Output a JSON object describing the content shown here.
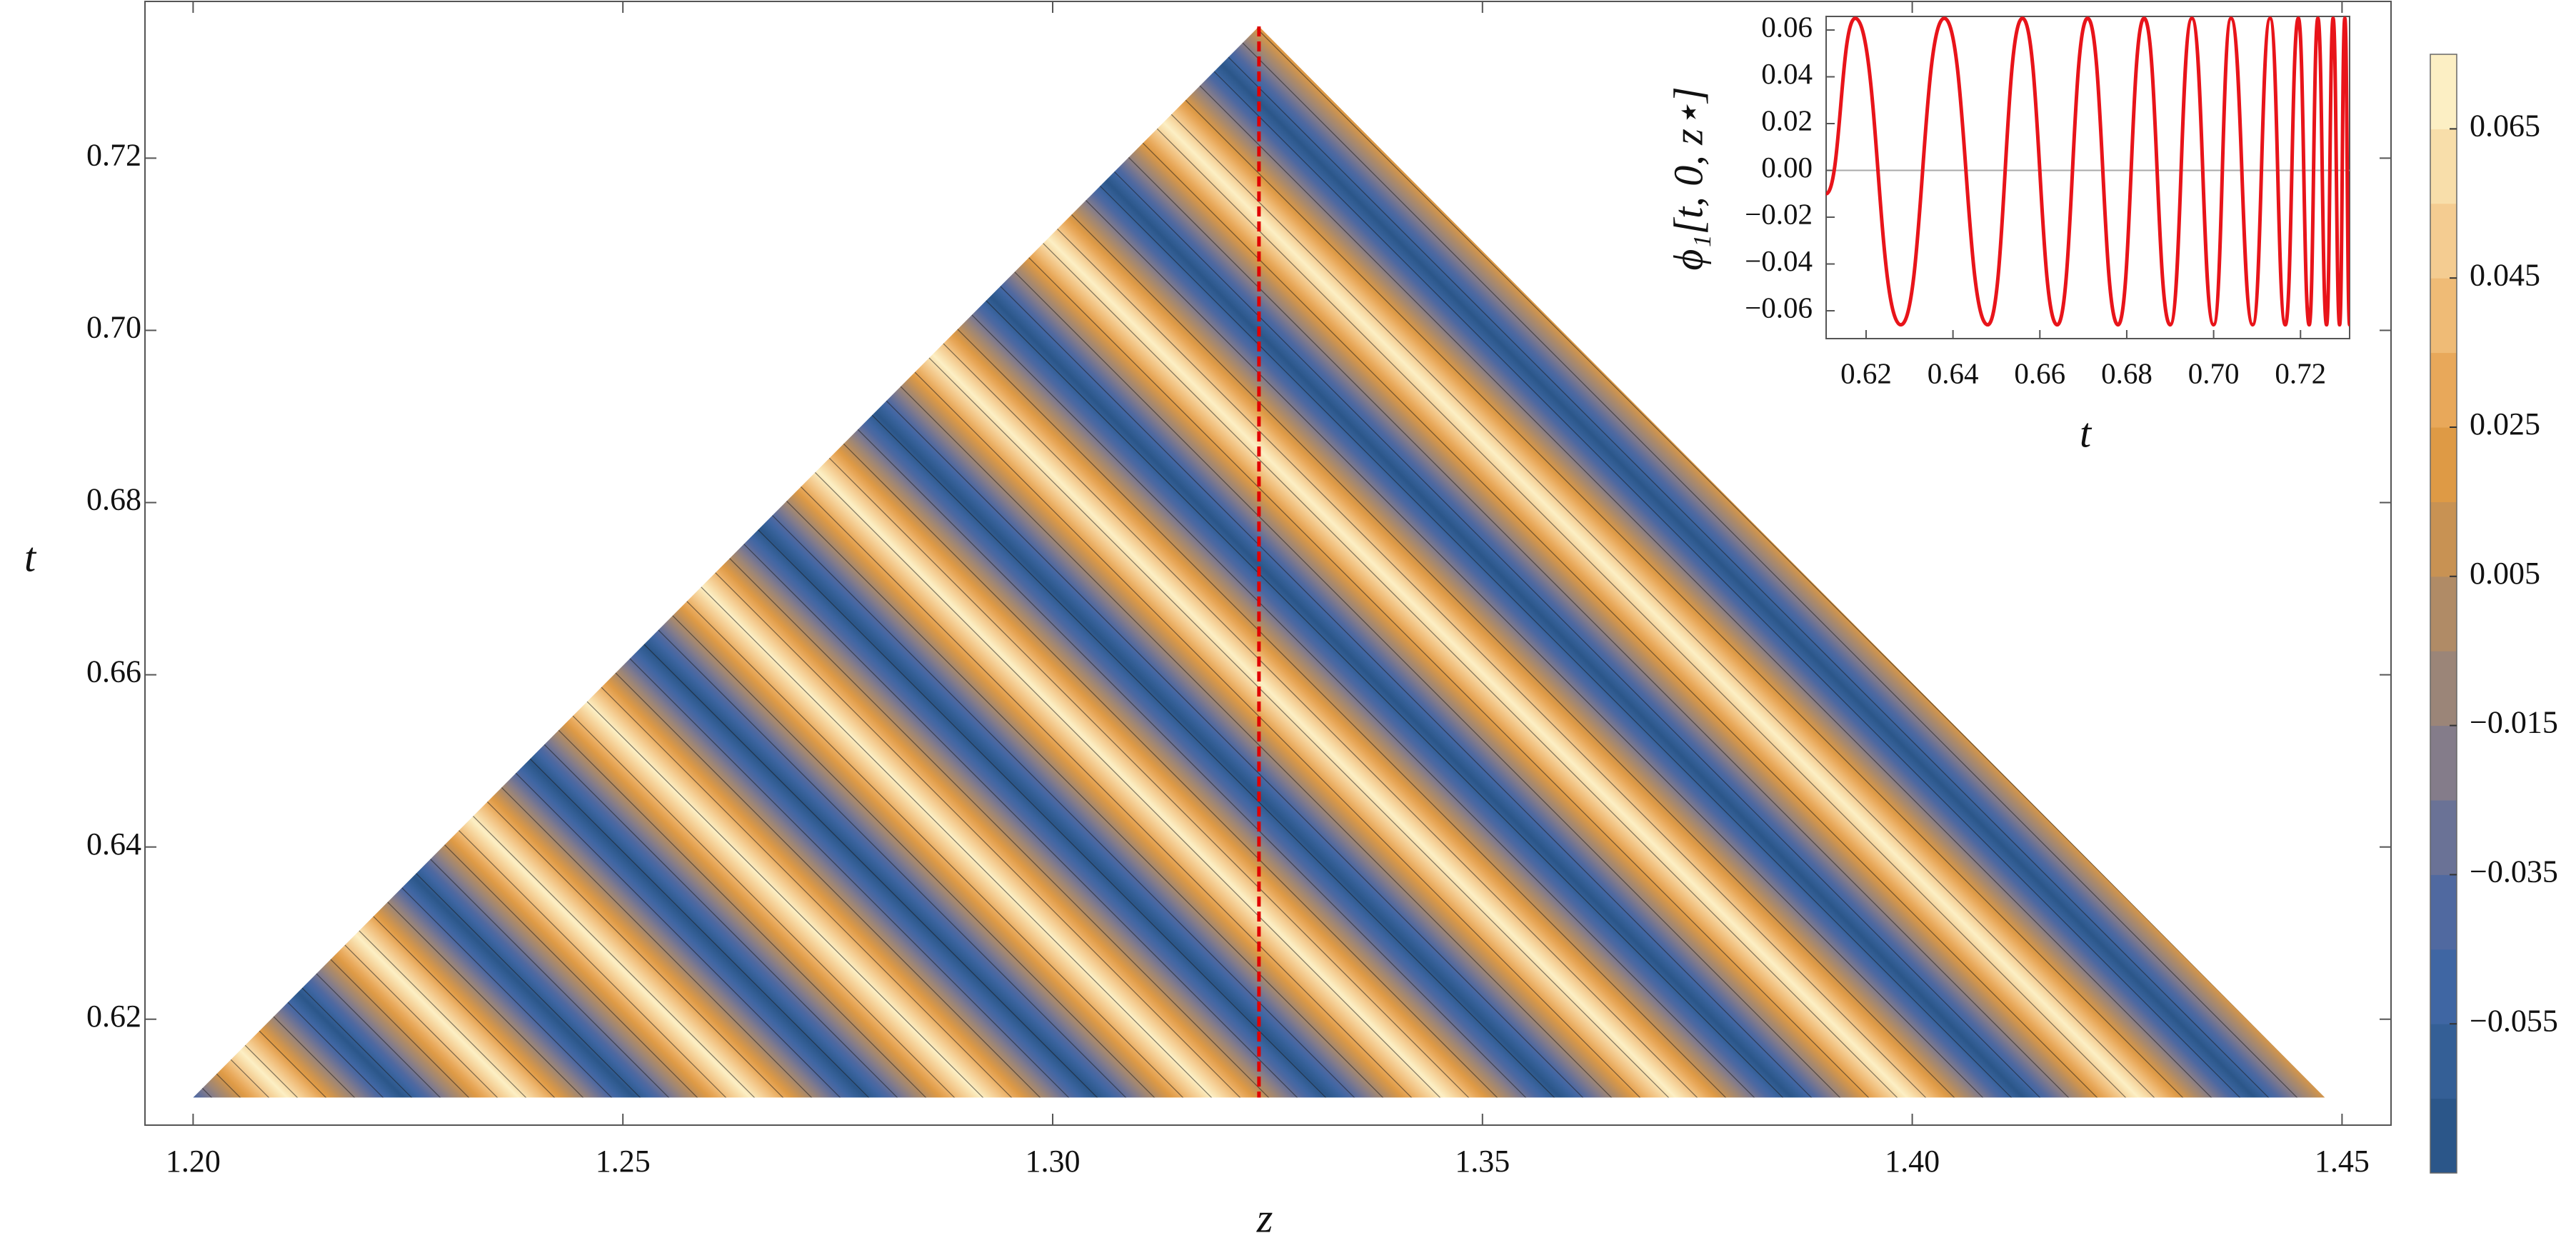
{
  "chart_data": [
    {
      "type": "contour",
      "xlabel": "z",
      "ylabel": "t",
      "xlim": [
        1.1944,
        1.4557
      ],
      "ylim": [
        0.6077,
        0.7382
      ],
      "xticks": [
        {
          "value": 1.2,
          "label": "1.20"
        },
        1.25,
        {
          "value": 1.3,
          "label": "1.30"
        },
        1.35,
        {
          "value": 1.4,
          "label": "1.40"
        },
        1.45
      ],
      "yticks": [
        0.62,
        0.64,
        0.66,
        0.68,
        {
          "value": 0.7,
          "label": "0.70"
        },
        0.72
      ],
      "region": {
        "z": [
          1.2,
          1.324,
          1.448
        ],
        "t": [
          0.6109,
          0.7353,
          0.6109
        ]
      },
      "z_star": 1.324,
      "marker_color": "#e00000",
      "colorbar": {
        "lim": [
          -0.075,
          0.075
        ],
        "ticks": [
          {
            "value": -0.055,
            "label": "−0.055"
          },
          {
            "value": -0.035,
            "label": "−0.035"
          },
          {
            "value": -0.015,
            "label": "−0.015"
          },
          0.005,
          0.025,
          0.045,
          0.065
        ],
        "colors": [
          "#2b5689",
          "#345f96",
          "#3f66a3",
          "#5069a0",
          "#6a7296",
          "#847c8a",
          "#9b8578",
          "#b08b66",
          "#c89253",
          "#de9a45",
          "#e8a85a",
          "#efbb76",
          "#f4cc91",
          "#f8deaa",
          "#fcefc4"
        ]
      }
    },
    {
      "type": "line",
      "xlabel": "t",
      "ylabel": "ϕ₁[t, 0, z⋆]",
      "xlim": [
        0.6108,
        0.7313
      ],
      "ylim": [
        -0.0719,
        0.0658
      ],
      "xticks": [
        0.62,
        0.64,
        0.66,
        0.68,
        {
          "value": 0.7,
          "label": "0.70"
        },
        0.72
      ],
      "yticks": [
        {
          "value": -0.06,
          "label": "−0.06"
        },
        {
          "value": -0.04,
          "label": "−0.04"
        },
        {
          "value": -0.02,
          "label": "−0.02"
        },
        {
          "value": 0,
          "label": "0.00"
        },
        0.02,
        0.04,
        0.06
      ],
      "series": [
        {
          "color": "#e8141a",
          "x": [
            0.6108,
            0.6175,
            0.628,
            0.638,
            0.648,
            0.656,
            0.664,
            0.671,
            0.678,
            0.684,
            0.69,
            0.695,
            0.7,
            0.704,
            0.709,
            0.713,
            0.7165,
            0.7195,
            0.722,
            0.724,
            0.726,
            0.7275,
            0.729,
            0.7302,
            0.7313
          ],
          "values": [
            -0.01,
            0.065,
            -0.066,
            0.065,
            -0.066,
            0.065,
            -0.066,
            0.065,
            -0.066,
            0.065,
            -0.066,
            0.065,
            -0.066,
            0.065,
            -0.066,
            0.065,
            -0.066,
            0.065,
            -0.066,
            0.065,
            -0.066,
            0.065,
            -0.066,
            0.065,
            -0.066
          ]
        }
      ]
    }
  ]
}
